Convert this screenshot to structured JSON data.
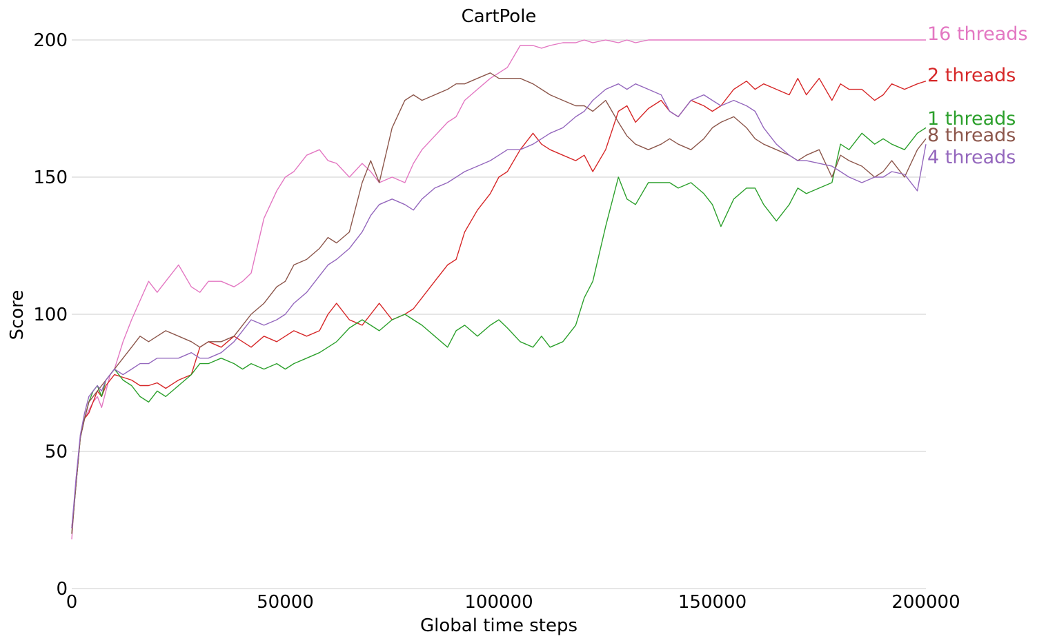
{
  "chart_data": {
    "type": "line",
    "title": "CartPole",
    "xlabel": "Global time steps",
    "ylabel": "Score",
    "xlim": [
      0,
      200000
    ],
    "ylim": [
      0,
      200
    ],
    "grid": "horizontal",
    "legend": "labels at right end of each line",
    "xticks": [
      0,
      50000,
      100000,
      150000,
      200000
    ],
    "yticks": [
      0,
      50,
      100,
      150,
      200
    ],
    "x": [
      0,
      1000,
      2000,
      3000,
      4000,
      5000,
      6000,
      7000,
      8000,
      9000,
      10000,
      12000,
      14000,
      16000,
      18000,
      20000,
      22000,
      25000,
      28000,
      30000,
      32000,
      35000,
      38000,
      40000,
      42000,
      45000,
      48000,
      50000,
      52000,
      55000,
      58000,
      60000,
      62000,
      65000,
      68000,
      70000,
      72000,
      75000,
      78000,
      80000,
      82000,
      85000,
      88000,
      90000,
      92000,
      95000,
      98000,
      100000,
      102000,
      105000,
      108000,
      110000,
      112000,
      115000,
      118000,
      120000,
      122000,
      125000,
      128000,
      130000,
      132000,
      135000,
      138000,
      140000,
      142000,
      145000,
      148000,
      150000,
      152000,
      155000,
      158000,
      160000,
      162000,
      165000,
      168000,
      170000,
      172000,
      175000,
      178000,
      180000,
      182000,
      185000,
      188000,
      190000,
      192000,
      195000,
      198000,
      200000
    ],
    "series": [
      {
        "name": "16 threads",
        "color": "#e377c2",
        "values": [
          18,
          40,
          55,
          62,
          65,
          68,
          70,
          66,
          72,
          78,
          80,
          90,
          98,
          105,
          112,
          108,
          112,
          118,
          110,
          108,
          112,
          112,
          110,
          112,
          115,
          135,
          145,
          150,
          152,
          158,
          160,
          156,
          155,
          150,
          155,
          152,
          148,
          150,
          148,
          155,
          160,
          165,
          170,
          172,
          178,
          182,
          186,
          188,
          190,
          198,
          198,
          197,
          198,
          199,
          199,
          200,
          199,
          200,
          199,
          200,
          199,
          200,
          200,
          200,
          200,
          200,
          200,
          200,
          200,
          200,
          200,
          200,
          200,
          200,
          200,
          200,
          200,
          200,
          200,
          200,
          200,
          200,
          200,
          200,
          200,
          200,
          200,
          200
        ]
      },
      {
        "name": "2 threads",
        "color": "#d62728",
        "values": [
          22,
          38,
          55,
          62,
          64,
          68,
          72,
          70,
          74,
          76,
          78,
          77,
          76,
          74,
          74,
          75,
          73,
          76,
          78,
          88,
          90,
          88,
          92,
          90,
          88,
          92,
          90,
          92,
          94,
          92,
          94,
          100,
          104,
          98,
          96,
          100,
          104,
          98,
          100,
          102,
          106,
          112,
          118,
          120,
          130,
          138,
          144,
          150,
          152,
          160,
          166,
          162,
          160,
          158,
          156,
          158,
          152,
          160,
          174,
          176,
          170,
          175,
          178,
          174,
          172,
          178,
          176,
          174,
          176,
          182,
          185,
          182,
          184,
          182,
          180,
          186,
          180,
          186,
          178,
          184,
          182,
          182,
          178,
          180,
          184,
          182,
          184,
          185
        ]
      },
      {
        "name": "1 threads",
        "color": "#2ca02c",
        "values": [
          20,
          38,
          55,
          62,
          68,
          72,
          74,
          70,
          76,
          78,
          80,
          76,
          74,
          70,
          68,
          72,
          70,
          74,
          78,
          82,
          82,
          84,
          82,
          80,
          82,
          80,
          82,
          80,
          82,
          84,
          86,
          88,
          90,
          95,
          98,
          96,
          94,
          98,
          100,
          98,
          96,
          92,
          88,
          94,
          96,
          92,
          96,
          98,
          95,
          90,
          88,
          92,
          88,
          90,
          96,
          106,
          112,
          132,
          150,
          142,
          140,
          148,
          148,
          148,
          146,
          148,
          144,
          140,
          132,
          142,
          146,
          146,
          140,
          134,
          140,
          146,
          144,
          146,
          148,
          162,
          160,
          166,
          162,
          164,
          162,
          160,
          166,
          168
        ]
      },
      {
        "name": "8 threads",
        "color": "#8c564b",
        "values": [
          20,
          38,
          55,
          62,
          68,
          70,
          72,
          74,
          76,
          78,
          80,
          84,
          88,
          92,
          90,
          92,
          94,
          92,
          90,
          88,
          90,
          90,
          92,
          96,
          100,
          104,
          110,
          112,
          118,
          120,
          124,
          128,
          126,
          130,
          148,
          156,
          148,
          168,
          178,
          180,
          178,
          180,
          182,
          184,
          184,
          186,
          188,
          186,
          186,
          186,
          184,
          182,
          180,
          178,
          176,
          176,
          174,
          178,
          170,
          165,
          162,
          160,
          162,
          164,
          162,
          160,
          164,
          168,
          170,
          172,
          168,
          164,
          162,
          160,
          158,
          156,
          158,
          160,
          150,
          158,
          156,
          154,
          150,
          152,
          156,
          150,
          160,
          164
        ]
      },
      {
        "name": "4 threads",
        "color": "#9467bd",
        "values": [
          22,
          40,
          56,
          64,
          70,
          72,
          74,
          72,
          76,
          78,
          80,
          78,
          80,
          82,
          82,
          84,
          84,
          84,
          86,
          84,
          84,
          86,
          90,
          94,
          98,
          96,
          98,
          100,
          104,
          108,
          114,
          118,
          120,
          124,
          130,
          136,
          140,
          142,
          140,
          138,
          142,
          146,
          148,
          150,
          152,
          154,
          156,
          158,
          160,
          160,
          162,
          164,
          166,
          168,
          172,
          174,
          178,
          182,
          184,
          182,
          184,
          182,
          180,
          174,
          172,
          178,
          180,
          178,
          176,
          178,
          176,
          174,
          168,
          162,
          158,
          156,
          156,
          155,
          154,
          152,
          150,
          148,
          150,
          150,
          152,
          151,
          145,
          162
        ]
      }
    ]
  }
}
